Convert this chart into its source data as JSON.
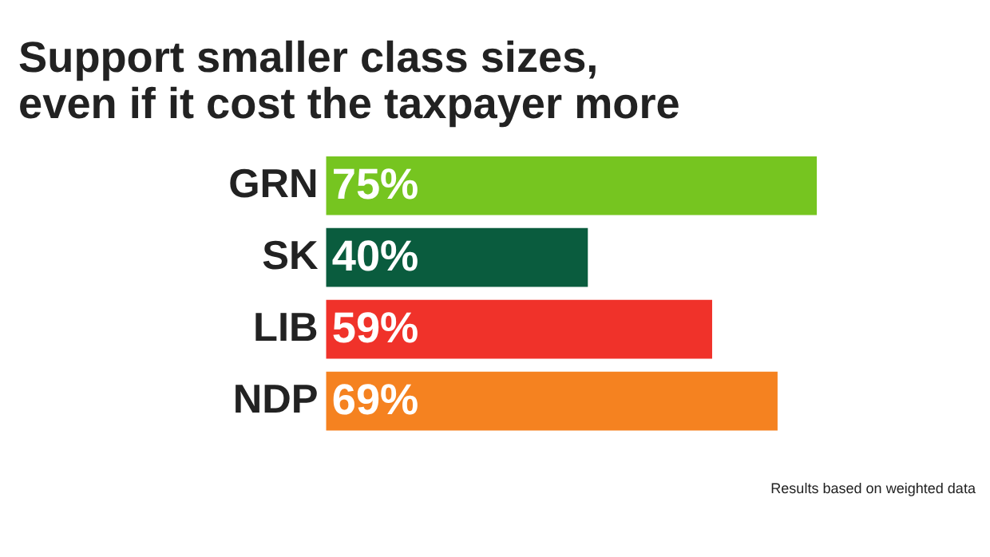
{
  "chart_data": {
    "type": "bar",
    "orientation": "horizontal",
    "title": [
      "Support smaller class sizes,",
      "even if it cost the taxpayer more"
    ],
    "categories": [
      "GRN",
      "SK",
      "LIB",
      "NDP"
    ],
    "values": [
      75,
      40,
      59,
      69
    ],
    "colors": [
      "#76c520",
      "#0a5c3e",
      "#f0322a",
      "#f58220"
    ],
    "value_labels": [
      "75%",
      "40%",
      "59%",
      "69%"
    ],
    "annotations": [
      "Results based on weighted data"
    ]
  }
}
